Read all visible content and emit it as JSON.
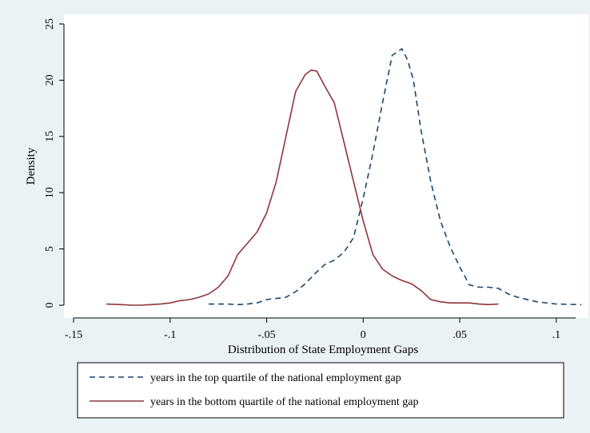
{
  "chart_data": {
    "type": "line",
    "title": "",
    "xlabel": "Distribution of State Employment Gaps",
    "ylabel": "Density",
    "xlim": [
      -0.15,
      0.11
    ],
    "ylim": [
      0,
      25
    ],
    "x_ticks": [
      {
        "value": -0.15,
        "label": "-.15"
      },
      {
        "value": -0.1,
        "label": "-.1"
      },
      {
        "value": -0.05,
        "label": "-.05"
      },
      {
        "value": 0,
        "label": "0"
      },
      {
        "value": 0.05,
        "label": ".05"
      },
      {
        "value": 0.1,
        "label": ".1"
      }
    ],
    "y_ticks": [
      {
        "value": 0,
        "label": "0"
      },
      {
        "value": 5,
        "label": "5"
      },
      {
        "value": 10,
        "label": "10"
      },
      {
        "value": 15,
        "label": "15"
      },
      {
        "value": 20,
        "label": "20"
      },
      {
        "value": 25,
        "label": "25"
      }
    ],
    "grid": false,
    "legend_position": "bottom",
    "series": [
      {
        "name": "years in the top quartile of the national employment gap",
        "color": "#1a476f",
        "style": "dashed",
        "x": [
          -0.08,
          -0.07,
          -0.065,
          -0.06,
          -0.055,
          -0.05,
          -0.045,
          -0.04,
          -0.035,
          -0.03,
          -0.025,
          -0.02,
          -0.015,
          -0.01,
          -0.005,
          0,
          0.005,
          0.01,
          0.015,
          0.02,
          0.023,
          0.026,
          0.03,
          0.035,
          0.04,
          0.045,
          0.05,
          0.055,
          0.06,
          0.065,
          0.07,
          0.075,
          0.08,
          0.09,
          0.1,
          0.113
        ],
        "y": [
          0.1,
          0.1,
          0.05,
          0.1,
          0.2,
          0.5,
          0.6,
          0.7,
          1.2,
          1.9,
          2.8,
          3.6,
          4.0,
          4.7,
          6.0,
          9.5,
          13.5,
          18.0,
          22.2,
          22.8,
          21.8,
          20.0,
          15.5,
          11.0,
          7.5,
          5.2,
          3.4,
          1.8,
          1.6,
          1.6,
          1.5,
          1.0,
          0.7,
          0.3,
          0.1,
          0.05
        ]
      },
      {
        "name": "years in the bottom quartile of the national employment gap",
        "color": "#90353b",
        "style": "solid",
        "x": [
          -0.133,
          -0.125,
          -0.12,
          -0.115,
          -0.11,
          -0.105,
          -0.1,
          -0.095,
          -0.09,
          -0.085,
          -0.08,
          -0.075,
          -0.07,
          -0.065,
          -0.06,
          -0.055,
          -0.05,
          -0.045,
          -0.04,
          -0.035,
          -0.03,
          -0.027,
          -0.024,
          -0.02,
          -0.015,
          -0.01,
          -0.005,
          0,
          0.005,
          0.01,
          0.015,
          0.02,
          0.025,
          0.03,
          0.035,
          0.04,
          0.045,
          0.05,
          0.055,
          0.06,
          0.065,
          0.07
        ],
        "y": [
          0.1,
          0.05,
          0.0,
          0.0,
          0.05,
          0.1,
          0.2,
          0.4,
          0.5,
          0.7,
          1.0,
          1.6,
          2.6,
          4.5,
          5.5,
          6.5,
          8.2,
          11.0,
          15.0,
          19.0,
          20.5,
          20.9,
          20.8,
          19.5,
          18.0,
          14.5,
          11.0,
          7.5,
          4.5,
          3.2,
          2.6,
          2.2,
          1.9,
          1.3,
          0.5,
          0.3,
          0.2,
          0.2,
          0.2,
          0.1,
          0.05,
          0.1
        ]
      }
    ]
  }
}
